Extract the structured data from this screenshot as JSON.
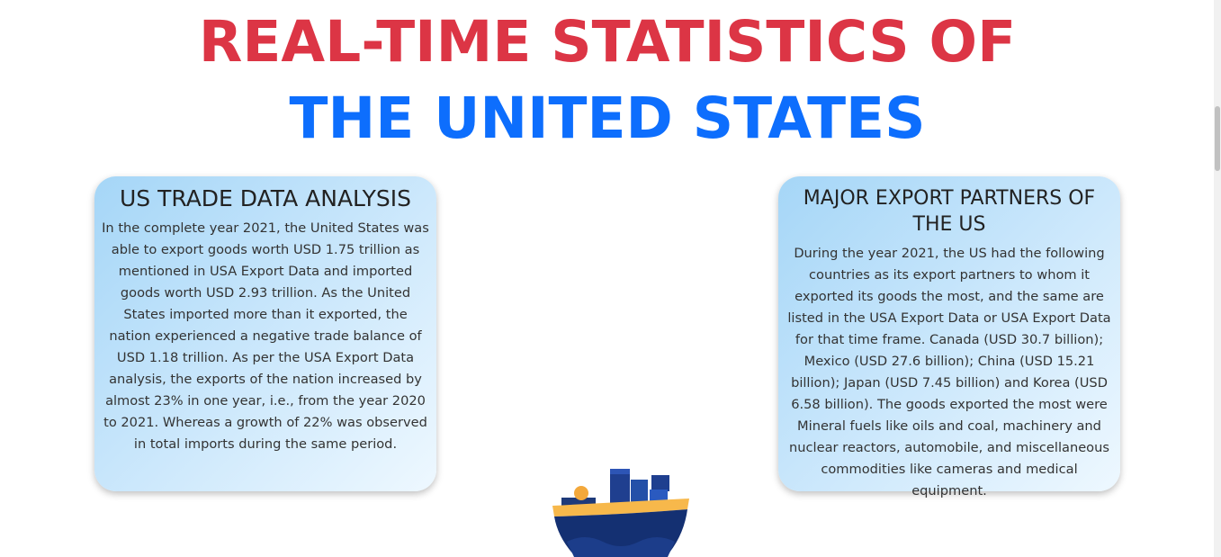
{
  "header": {
    "title_line1": "REAL-TIME STATISTICS OF",
    "title_line2": "THE UNITED STATES"
  },
  "colors": {
    "title_red": "#dc3545",
    "title_blue": "#0d6efd",
    "card_gradient_start": "#a5d6f7",
    "card_gradient_end": "#eef8ff"
  },
  "cards": [
    {
      "heading": "US TRADE DATA ANALYSIS",
      "body": "In the complete year 2021, the United States was able to export goods worth USD 1.75 trillion as mentioned in USA Export Data and imported goods worth USD 2.93 trillion. As the United States imported more than it exported, the nation experienced a negative trade balance of USD 1.18 trillion. As per the USA Export Data analysis, the exports of the nation increased by almost 23% in one year, i.e., from the year 2020 to 2021. Whereas a growth of 22% was observed in total imports during the same period."
    },
    {
      "heading": "MAJOR EXPORT PARTNERS OF THE US",
      "body": "During the year 2021, the US had the following countries as its export partners to whom it exported its goods the most, and the same are listed in the USA Export Data or USA Export Data for that time frame. Canada (USD 30.7 billion); Mexico (USD 27.6 billion); China (USD 15.21 billion); Japan (USD 7.45 billion) and Korea (USD 6.58 billion). The goods exported the most were Mineral fuels like oils and coal, machinery and nuclear reactors, automobile, and miscellaneous commodities like cameras and medical equipment."
    }
  ],
  "illustration": {
    "icon": "cargo-ship-icon"
  }
}
